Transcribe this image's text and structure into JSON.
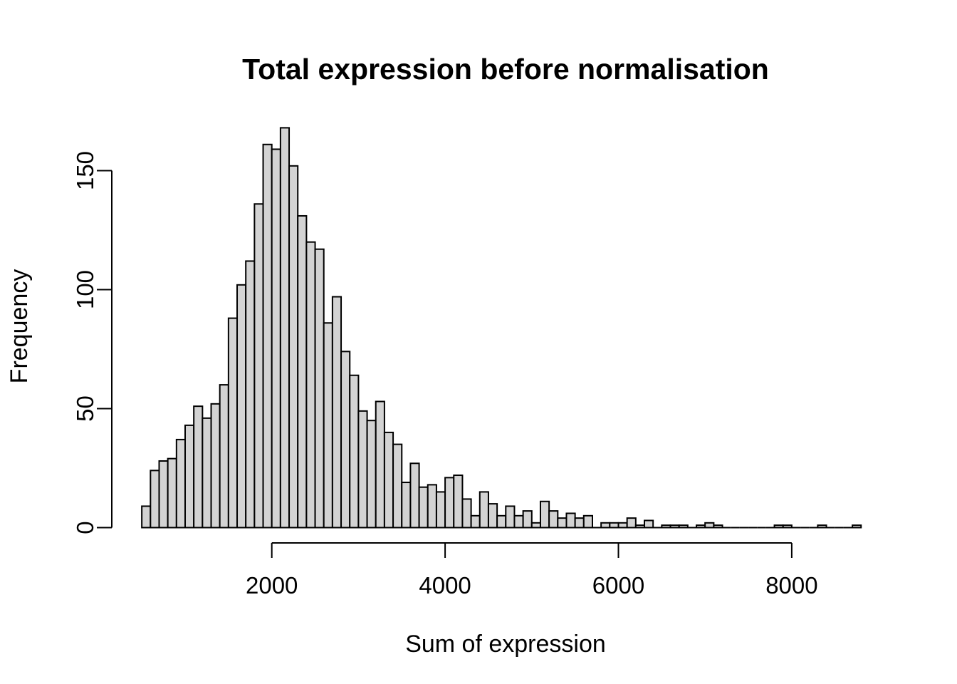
{
  "chart_data": {
    "type": "bar",
    "subtype": "histogram",
    "title": "Total expression before normalisation",
    "xlabel": "Sum of expression",
    "ylabel": "Frequency",
    "bin_start": 500,
    "bin_width": 100,
    "counts": [
      9,
      24,
      28,
      29,
      37,
      43,
      51,
      46,
      52,
      60,
      88,
      102,
      112,
      136,
      161,
      159,
      168,
      152,
      131,
      120,
      117,
      86,
      97,
      74,
      64,
      49,
      45,
      53,
      40,
      35,
      19,
      27,
      17,
      18,
      15,
      21,
      22,
      12,
      5,
      15,
      10,
      5,
      9,
      5,
      7,
      2,
      11,
      7,
      4,
      6,
      4,
      5,
      0,
      2,
      2,
      2,
      4,
      1,
      3,
      0,
      1,
      1,
      1,
      0,
      1,
      2,
      1,
      0,
      0,
      0,
      0,
      0,
      0,
      1,
      1,
      0,
      0,
      0,
      1,
      0,
      0,
      0,
      1
    ],
    "last_bin_count": 1,
    "x_ticks": [
      2000,
      4000,
      6000,
      8000
    ],
    "y_ticks": [
      0,
      50,
      100,
      150
    ],
    "xlim": [
      500,
      8900
    ],
    "ylim": [
      0,
      168
    ],
    "grid": false,
    "legend": "none",
    "bar_fill": "#d3d3d3",
    "bar_stroke": "#000000",
    "axis_color": "#000000",
    "background": "#ffffff"
  }
}
